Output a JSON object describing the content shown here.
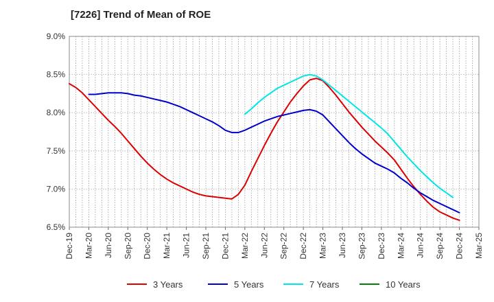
{
  "chart_data": {
    "type": "line",
    "title": "[7226]  Trend of Mean of ROE",
    "xlabel": "",
    "ylabel": "",
    "x_ticks": [
      "Dec-19",
      "Mar-20",
      "Jun-20",
      "Sep-20",
      "Dec-20",
      "Mar-21",
      "Jun-21",
      "Sep-21",
      "Dec-21",
      "Mar-22",
      "Jun-22",
      "Sep-22",
      "Dec-22",
      "Mar-23",
      "Jun-23",
      "Sep-23",
      "Dec-23",
      "Mar-24",
      "Jun-24",
      "Sep-24",
      "Dec-24",
      "Mar-25"
    ],
    "y_ticks": [
      "6.5%",
      "7.0%",
      "7.5%",
      "8.0%",
      "8.5%",
      "9.0%"
    ],
    "ylim": [
      6.5,
      9.0
    ],
    "grid": true,
    "legend_position": "bottom",
    "series": [
      {
        "name": "3 Years",
        "color": "#dd0000",
        "points": [
          [
            "Dec-19",
            8.38
          ],
          [
            "Jan-20",
            8.33
          ],
          [
            "Feb-20",
            8.26
          ],
          [
            "Mar-20",
            8.17
          ],
          [
            "Apr-20",
            8.08
          ],
          [
            "May-20",
            7.99
          ],
          [
            "Jun-20",
            7.9
          ],
          [
            "Jul-20",
            7.82
          ],
          [
            "Aug-20",
            7.73
          ],
          [
            "Sep-20",
            7.63
          ],
          [
            "Oct-20",
            7.53
          ],
          [
            "Nov-20",
            7.43
          ],
          [
            "Dec-20",
            7.34
          ],
          [
            "Jan-21",
            7.26
          ],
          [
            "Feb-21",
            7.19
          ],
          [
            "Mar-21",
            7.13
          ],
          [
            "Apr-21",
            7.08
          ],
          [
            "May-21",
            7.04
          ],
          [
            "Jun-21",
            7.0
          ],
          [
            "Jul-21",
            6.96
          ],
          [
            "Aug-21",
            6.93
          ],
          [
            "Sep-21",
            6.91
          ],
          [
            "Oct-21",
            6.9
          ],
          [
            "Nov-21",
            6.89
          ],
          [
            "Dec-21",
            6.88
          ],
          [
            "Jan-22",
            6.87
          ],
          [
            "Feb-22",
            6.93
          ],
          [
            "Mar-22",
            7.05
          ],
          [
            "Apr-22",
            7.23
          ],
          [
            "May-22",
            7.4
          ],
          [
            "Jun-22",
            7.57
          ],
          [
            "Jul-22",
            7.73
          ],
          [
            "Aug-22",
            7.88
          ],
          [
            "Sep-22",
            8.01
          ],
          [
            "Oct-22",
            8.14
          ],
          [
            "Nov-22",
            8.25
          ],
          [
            "Dec-22",
            8.35
          ],
          [
            "Jan-23",
            8.43
          ],
          [
            "Feb-23",
            8.45
          ],
          [
            "Mar-23",
            8.42
          ],
          [
            "Apr-23",
            8.33
          ],
          [
            "May-23",
            8.23
          ],
          [
            "Jun-23",
            8.12
          ],
          [
            "Jul-23",
            8.01
          ],
          [
            "Aug-23",
            7.91
          ],
          [
            "Sep-23",
            7.81
          ],
          [
            "Oct-23",
            7.72
          ],
          [
            "Nov-23",
            7.63
          ],
          [
            "Dec-23",
            7.55
          ],
          [
            "Jan-24",
            7.47
          ],
          [
            "Feb-24",
            7.38
          ],
          [
            "Mar-24",
            7.26
          ],
          [
            "Apr-24",
            7.14
          ],
          [
            "May-24",
            7.03
          ],
          [
            "Jun-24",
            6.93
          ],
          [
            "Jul-24",
            6.84
          ],
          [
            "Aug-24",
            6.76
          ],
          [
            "Sep-24",
            6.7
          ],
          [
            "Oct-24",
            6.66
          ],
          [
            "Nov-24",
            6.62
          ],
          [
            "Dec-24",
            6.59
          ]
        ]
      },
      {
        "name": "5 Years",
        "color": "#0000cc",
        "points": [
          [
            "Mar-20",
            8.24
          ],
          [
            "Apr-20",
            8.24
          ],
          [
            "May-20",
            8.25
          ],
          [
            "Jun-20",
            8.26
          ],
          [
            "Jul-20",
            8.26
          ],
          [
            "Aug-20",
            8.26
          ],
          [
            "Sep-20",
            8.25
          ],
          [
            "Oct-20",
            8.23
          ],
          [
            "Nov-20",
            8.22
          ],
          [
            "Dec-20",
            8.2
          ],
          [
            "Jan-21",
            8.18
          ],
          [
            "Feb-21",
            8.16
          ],
          [
            "Mar-21",
            8.14
          ],
          [
            "Apr-21",
            8.11
          ],
          [
            "May-21",
            8.08
          ],
          [
            "Jun-21",
            8.04
          ],
          [
            "Jul-21",
            8.0
          ],
          [
            "Aug-21",
            7.96
          ],
          [
            "Sep-21",
            7.92
          ],
          [
            "Oct-21",
            7.88
          ],
          [
            "Nov-21",
            7.83
          ],
          [
            "Dec-21",
            7.77
          ],
          [
            "Jan-22",
            7.74
          ],
          [
            "Feb-22",
            7.74
          ],
          [
            "Mar-22",
            7.77
          ],
          [
            "Apr-22",
            7.81
          ],
          [
            "May-22",
            7.85
          ],
          [
            "Jun-22",
            7.89
          ],
          [
            "Jul-22",
            7.92
          ],
          [
            "Aug-22",
            7.95
          ],
          [
            "Sep-22",
            7.97
          ],
          [
            "Oct-22",
            7.99
          ],
          [
            "Nov-22",
            8.01
          ],
          [
            "Dec-22",
            8.03
          ],
          [
            "Jan-23",
            8.04
          ],
          [
            "Feb-23",
            8.02
          ],
          [
            "Mar-23",
            7.97
          ],
          [
            "Apr-23",
            7.88
          ],
          [
            "May-23",
            7.79
          ],
          [
            "Jun-23",
            7.7
          ],
          [
            "Jul-23",
            7.61
          ],
          [
            "Aug-23",
            7.53
          ],
          [
            "Sep-23",
            7.46
          ],
          [
            "Oct-23",
            7.4
          ],
          [
            "Nov-23",
            7.34
          ],
          [
            "Dec-23",
            7.3
          ],
          [
            "Jan-24",
            7.26
          ],
          [
            "Feb-24",
            7.21
          ],
          [
            "Mar-24",
            7.14
          ],
          [
            "Apr-24",
            7.08
          ],
          [
            "May-24",
            7.01
          ],
          [
            "Jun-24",
            6.95
          ],
          [
            "Jul-24",
            6.9
          ],
          [
            "Aug-24",
            6.85
          ],
          [
            "Sep-24",
            6.81
          ],
          [
            "Oct-24",
            6.77
          ],
          [
            "Nov-24",
            6.73
          ],
          [
            "Dec-24",
            6.69
          ]
        ]
      },
      {
        "name": "7 Years",
        "color": "#00e5e5",
        "points": [
          [
            "Mar-22",
            7.98
          ],
          [
            "Apr-22",
            8.05
          ],
          [
            "May-22",
            8.13
          ],
          [
            "Jun-22",
            8.2
          ],
          [
            "Jul-22",
            8.26
          ],
          [
            "Aug-22",
            8.32
          ],
          [
            "Sep-22",
            8.36
          ],
          [
            "Oct-22",
            8.4
          ],
          [
            "Nov-22",
            8.44
          ],
          [
            "Dec-22",
            8.48
          ],
          [
            "Jan-23",
            8.5
          ],
          [
            "Feb-23",
            8.48
          ],
          [
            "Mar-23",
            8.43
          ],
          [
            "Apr-23",
            8.36
          ],
          [
            "May-23",
            8.29
          ],
          [
            "Jun-23",
            8.22
          ],
          [
            "Jul-23",
            8.15
          ],
          [
            "Aug-23",
            8.08
          ],
          [
            "Sep-23",
            8.01
          ],
          [
            "Oct-23",
            7.94
          ],
          [
            "Nov-23",
            7.87
          ],
          [
            "Dec-23",
            7.8
          ],
          [
            "Jan-24",
            7.72
          ],
          [
            "Feb-24",
            7.62
          ],
          [
            "Mar-24",
            7.52
          ],
          [
            "Apr-24",
            7.42
          ],
          [
            "May-24",
            7.33
          ],
          [
            "Jun-24",
            7.24
          ],
          [
            "Jul-24",
            7.16
          ],
          [
            "Aug-24",
            7.08
          ],
          [
            "Sep-24",
            7.01
          ],
          [
            "Oct-24",
            6.95
          ],
          [
            "Nov-24",
            6.89
          ]
        ]
      },
      {
        "name": "10 Years",
        "color": "#008000",
        "points": []
      }
    ]
  }
}
